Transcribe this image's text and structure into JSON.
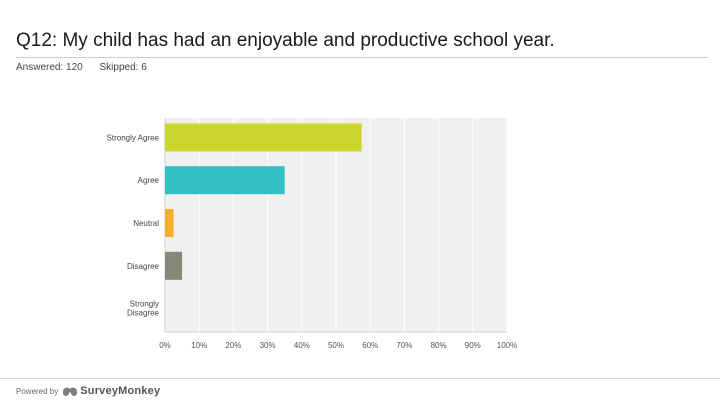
{
  "header": {
    "title": "Q12: My child has had an enjoyable and productive school year.",
    "answered": "Answered: 120",
    "skipped": "Skipped: 6"
  },
  "footer": {
    "powered_by": "Powered by",
    "brand": "SurveyMonkey",
    "brand_icon": "surveymonkey-logo-icon"
  },
  "chart_data": {
    "type": "bar",
    "orientation": "horizontal",
    "categories": [
      "Strongly Agree",
      "Agree",
      "Neutral",
      "Disagree",
      "Strongly Disagree"
    ],
    "values": [
      57.5,
      35,
      2.5,
      5,
      0
    ],
    "colors": [
      "#ccd52f",
      "#33bfc2",
      "#f5ad2e",
      "#868774",
      "#cccccc"
    ],
    "xlim": [
      0,
      100
    ],
    "xticks": [
      "0%",
      "10%",
      "20%",
      "30%",
      "40%",
      "50%",
      "60%",
      "70%",
      "80%",
      "90%",
      "100%"
    ],
    "grid": true,
    "plot_background": "#f0f0f0"
  }
}
